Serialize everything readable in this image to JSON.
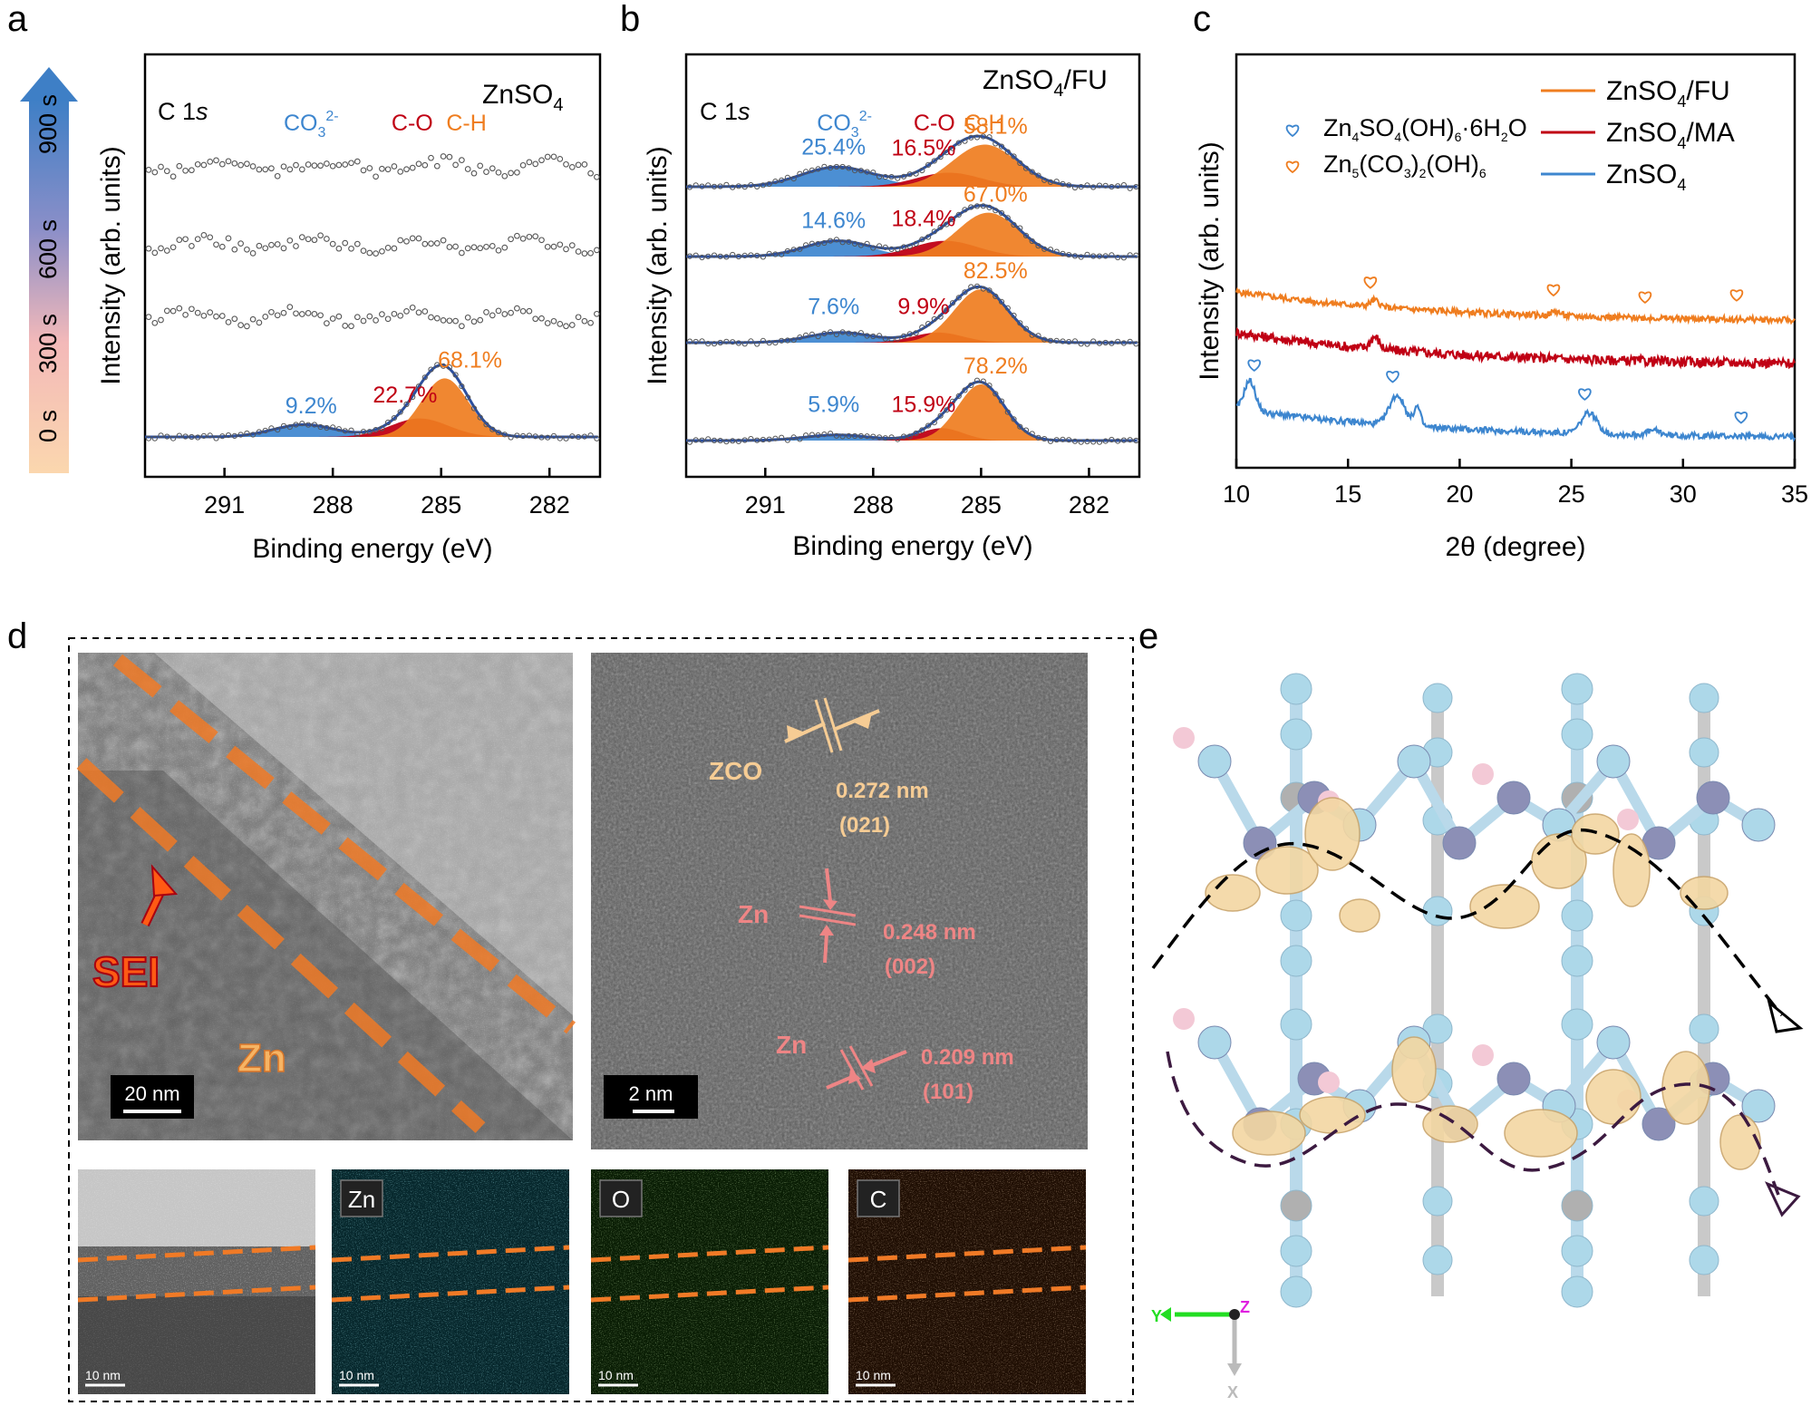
{
  "colors": {
    "blue": "#3d86cf",
    "red": "#c00014",
    "orange": "#ef7d1f",
    "peach": "#f6cc94",
    "pink": "#ee8585",
    "dark_red": "#a80010",
    "sei_orange": "#ff5a14",
    "cyan": "#00d4ea",
    "green": "#6fd21c",
    "brown": "#d07a1a"
  },
  "panel_labels": {
    "a": "a",
    "b": "b",
    "c": "c",
    "d": "d",
    "e": "e"
  },
  "chart_data": [
    {
      "id": "a",
      "type": "line",
      "title": "ZnSO",
      "title_sub": "4",
      "region": "C 1",
      "region_italic": "s",
      "xlabel": "Binding energy (eV)",
      "ylabel": "Intensity (arb. units)",
      "xlim": [
        293.2,
        280.6
      ],
      "xticks": [
        "291",
        "288",
        "285",
        "282"
      ],
      "xtick_values": [
        291,
        288,
        285,
        282
      ],
      "component_labels": [
        {
          "base": "CO",
          "sub": "3",
          "sup": "2-",
          "color": "blue",
          "be": 288.6
        },
        {
          "base": "C-O",
          "color": "red",
          "be": 285.8
        },
        {
          "base": "C-H",
          "color": "orange",
          "be": 284.3
        }
      ],
      "time_bar": {
        "ticks": [
          "0 s",
          "300 s",
          "600 s",
          "900 s"
        ]
      },
      "spectra": [
        {
          "time": "0 s",
          "fitted": true,
          "percents": [
            {
              "value": "9.2%",
              "color": "blue",
              "be": 288.6
            },
            {
              "value": "22.7%",
              "color": "red",
              "be": 286.0
            },
            {
              "value": "68.1%",
              "color": "orange",
              "be": 284.2
            }
          ],
          "peaks": [
            {
              "center": 288.8,
              "height": 0.2,
              "width": 0.85,
              "color": "blue"
            },
            {
              "center": 285.6,
              "height": 0.3,
              "width": 0.8,
              "color": "red"
            },
            {
              "center": 284.9,
              "height": 0.95,
              "width": 0.65,
              "color": "orange"
            }
          ]
        },
        {
          "time": "300 s",
          "fitted": false,
          "percents": [],
          "peaks": []
        },
        {
          "time": "600 s",
          "fitted": false,
          "percents": [],
          "peaks": []
        },
        {
          "time": "900 s",
          "fitted": false,
          "percents": [],
          "peaks": []
        }
      ]
    },
    {
      "id": "b",
      "type": "line",
      "title": "ZnSO",
      "title_sub": "4",
      "title_suffix": "/FU",
      "region": "C 1",
      "region_italic": "s",
      "xlabel": "Binding energy (eV)",
      "ylabel": "Intensity (arb. units)",
      "xlim": [
        293.2,
        280.6
      ],
      "xticks": [
        "291",
        "288",
        "285",
        "282"
      ],
      "xtick_values": [
        291,
        288,
        285,
        282
      ],
      "component_labels": [
        {
          "base": "CO",
          "sub": "3",
          "sup": "2-",
          "color": "blue",
          "be": 288.8
        },
        {
          "base": "C-O",
          "color": "red",
          "be": 286.3
        },
        {
          "base": "C-H",
          "color": "orange",
          "be": 284.9
        }
      ],
      "spectra": [
        {
          "time": "0 s",
          "fitted": true,
          "percents": [
            {
              "value": "5.9%",
              "color": "blue",
              "be": 289.1
            },
            {
              "value": "15.9%",
              "color": "red",
              "be": 286.6
            },
            {
              "value": "78.2%",
              "color": "orange",
              "be": 284.6
            }
          ],
          "peaks": [
            {
              "center": 289.0,
              "height": 0.1,
              "width": 0.9,
              "color": "blue"
            },
            {
              "center": 286.1,
              "height": 0.22,
              "width": 0.6,
              "color": "red"
            },
            {
              "center": 285.0,
              "height": 1.0,
              "width": 0.65,
              "color": "orange"
            }
          ]
        },
        {
          "time": "300 s",
          "fitted": true,
          "percents": [
            {
              "value": "7.6%",
              "color": "blue",
              "be": 289.1
            },
            {
              "value": "9.9%",
              "color": "red",
              "be": 286.6
            },
            {
              "value": "82.5%",
              "color": "orange",
              "be": 284.6
            }
          ],
          "peaks": [
            {
              "center": 288.9,
              "height": 0.18,
              "width": 0.9,
              "color": "blue"
            },
            {
              "center": 286.2,
              "height": 0.18,
              "width": 0.7,
              "color": "red"
            },
            {
              "center": 285.0,
              "height": 0.95,
              "width": 0.75,
              "color": "orange"
            }
          ]
        },
        {
          "time": "600 s",
          "fitted": true,
          "percents": [
            {
              "value": "14.6%",
              "color": "blue",
              "be": 289.1
            },
            {
              "value": "18.4%",
              "color": "red",
              "be": 286.6
            },
            {
              "value": "67.0%",
              "color": "orange",
              "be": 284.6
            }
          ],
          "peaks": [
            {
              "center": 289.0,
              "height": 0.28,
              "width": 0.9,
              "color": "blue"
            },
            {
              "center": 286.0,
              "height": 0.28,
              "width": 0.9,
              "color": "red"
            },
            {
              "center": 284.8,
              "height": 0.78,
              "width": 0.85,
              "color": "orange"
            }
          ]
        },
        {
          "time": "900 s",
          "fitted": true,
          "percents": [
            {
              "value": "25.4%",
              "color": "blue",
              "be": 289.1
            },
            {
              "value": "16.5%",
              "color": "red",
              "be": 286.6
            },
            {
              "value": "58.1%",
              "color": "orange",
              "be": 284.6
            }
          ],
          "peaks": [
            {
              "center": 289.0,
              "height": 0.35,
              "width": 1.0,
              "color": "blue"
            },
            {
              "center": 285.9,
              "height": 0.25,
              "width": 0.9,
              "color": "red"
            },
            {
              "center": 284.9,
              "height": 0.75,
              "width": 0.9,
              "color": "orange"
            }
          ]
        }
      ]
    },
    {
      "id": "c",
      "type": "line",
      "xlabel": "2θ (degree)",
      "ylabel": "Intensity (arb. units)",
      "xlim": [
        10,
        35
      ],
      "xticks": [
        "10",
        "15",
        "20",
        "25",
        "30",
        "35"
      ],
      "xtick_values": [
        10,
        15,
        20,
        25,
        30,
        35
      ],
      "legend_position": "top-right",
      "series": [
        {
          "name": "ZnSO",
          "sub": "4",
          "suffix": "/FU",
          "color": "orange",
          "offset": 2.15,
          "peaks": [
            {
              "x": 16.2,
              "h": 0.12,
              "w": 0.2
            },
            {
              "x": 24.3,
              "h": 0.08,
              "w": 0.2
            }
          ]
        },
        {
          "name": "ZnSO",
          "sub": "4",
          "suffix": "/MA",
          "color": "red",
          "offset": 1.35,
          "peaks": [
            {
              "x": 16.2,
              "h": 0.22,
              "w": 0.2
            }
          ]
        },
        {
          "name": "ZnSO",
          "sub": "4",
          "suffix": "",
          "color": "blue",
          "offset": 0.0,
          "peaks": [
            {
              "x": 10.6,
              "h": 0.55,
              "w": 0.25
            },
            {
              "x": 17.2,
              "h": 0.55,
              "w": 0.35
            },
            {
              "x": 18.1,
              "h": 0.35,
              "w": 0.15
            },
            {
              "x": 25.8,
              "h": 0.38,
              "w": 0.35
            },
            {
              "x": 28.7,
              "h": 0.08,
              "w": 0.3
            }
          ]
        }
      ],
      "markers_legend": [
        {
          "color": "blue",
          "parts": [
            "Zn",
            "4",
            "SO",
            "4",
            "(OH)",
            "6",
            "·6H",
            "2",
            "O"
          ]
        },
        {
          "color": "orange",
          "parts": [
            "Zn",
            "5",
            "(CO",
            "3",
            ")",
            "2",
            "(OH)",
            "6"
          ]
        }
      ],
      "hearts": [
        {
          "x": 10.8,
          "series": 2,
          "color": "blue"
        },
        {
          "x": 17.0,
          "series": 2,
          "color": "blue"
        },
        {
          "x": 25.6,
          "series": 2,
          "color": "blue"
        },
        {
          "x": 32.6,
          "series": 2,
          "color": "blue"
        },
        {
          "x": 16.0,
          "series": 0,
          "color": "orange"
        },
        {
          "x": 24.2,
          "series": 0,
          "color": "orange"
        },
        {
          "x": 28.3,
          "series": 0,
          "color": "orange"
        },
        {
          "x": 32.4,
          "series": 0,
          "color": "orange"
        }
      ]
    }
  ],
  "panel_d": {
    "sei_label": "SEI",
    "zn_label": "Zn",
    "scale_main": "20 nm",
    "scale_hr": "2 nm",
    "zco_label": "ZCO",
    "lattice": [
      {
        "phase": "ZCO",
        "spacing": "0.272 nm",
        "plane": "(021)",
        "color": "peach"
      },
      {
        "phase": "Zn",
        "spacing": "0.248 nm",
        "plane": "(002)",
        "color": "pink"
      },
      {
        "phase": "Zn",
        "spacing": "0.209 nm",
        "plane": "(101)",
        "color": "pink"
      }
    ],
    "eds_maps": [
      {
        "element": "",
        "scale": "10 nm"
      },
      {
        "element": "Zn",
        "scale": "10 nm"
      },
      {
        "element": "O",
        "scale": "10 nm"
      },
      {
        "element": "C",
        "scale": "10 nm"
      }
    ]
  },
  "panel_e": {
    "axes_labels": {
      "y": "Y",
      "z": "Z",
      "x": "X"
    }
  }
}
